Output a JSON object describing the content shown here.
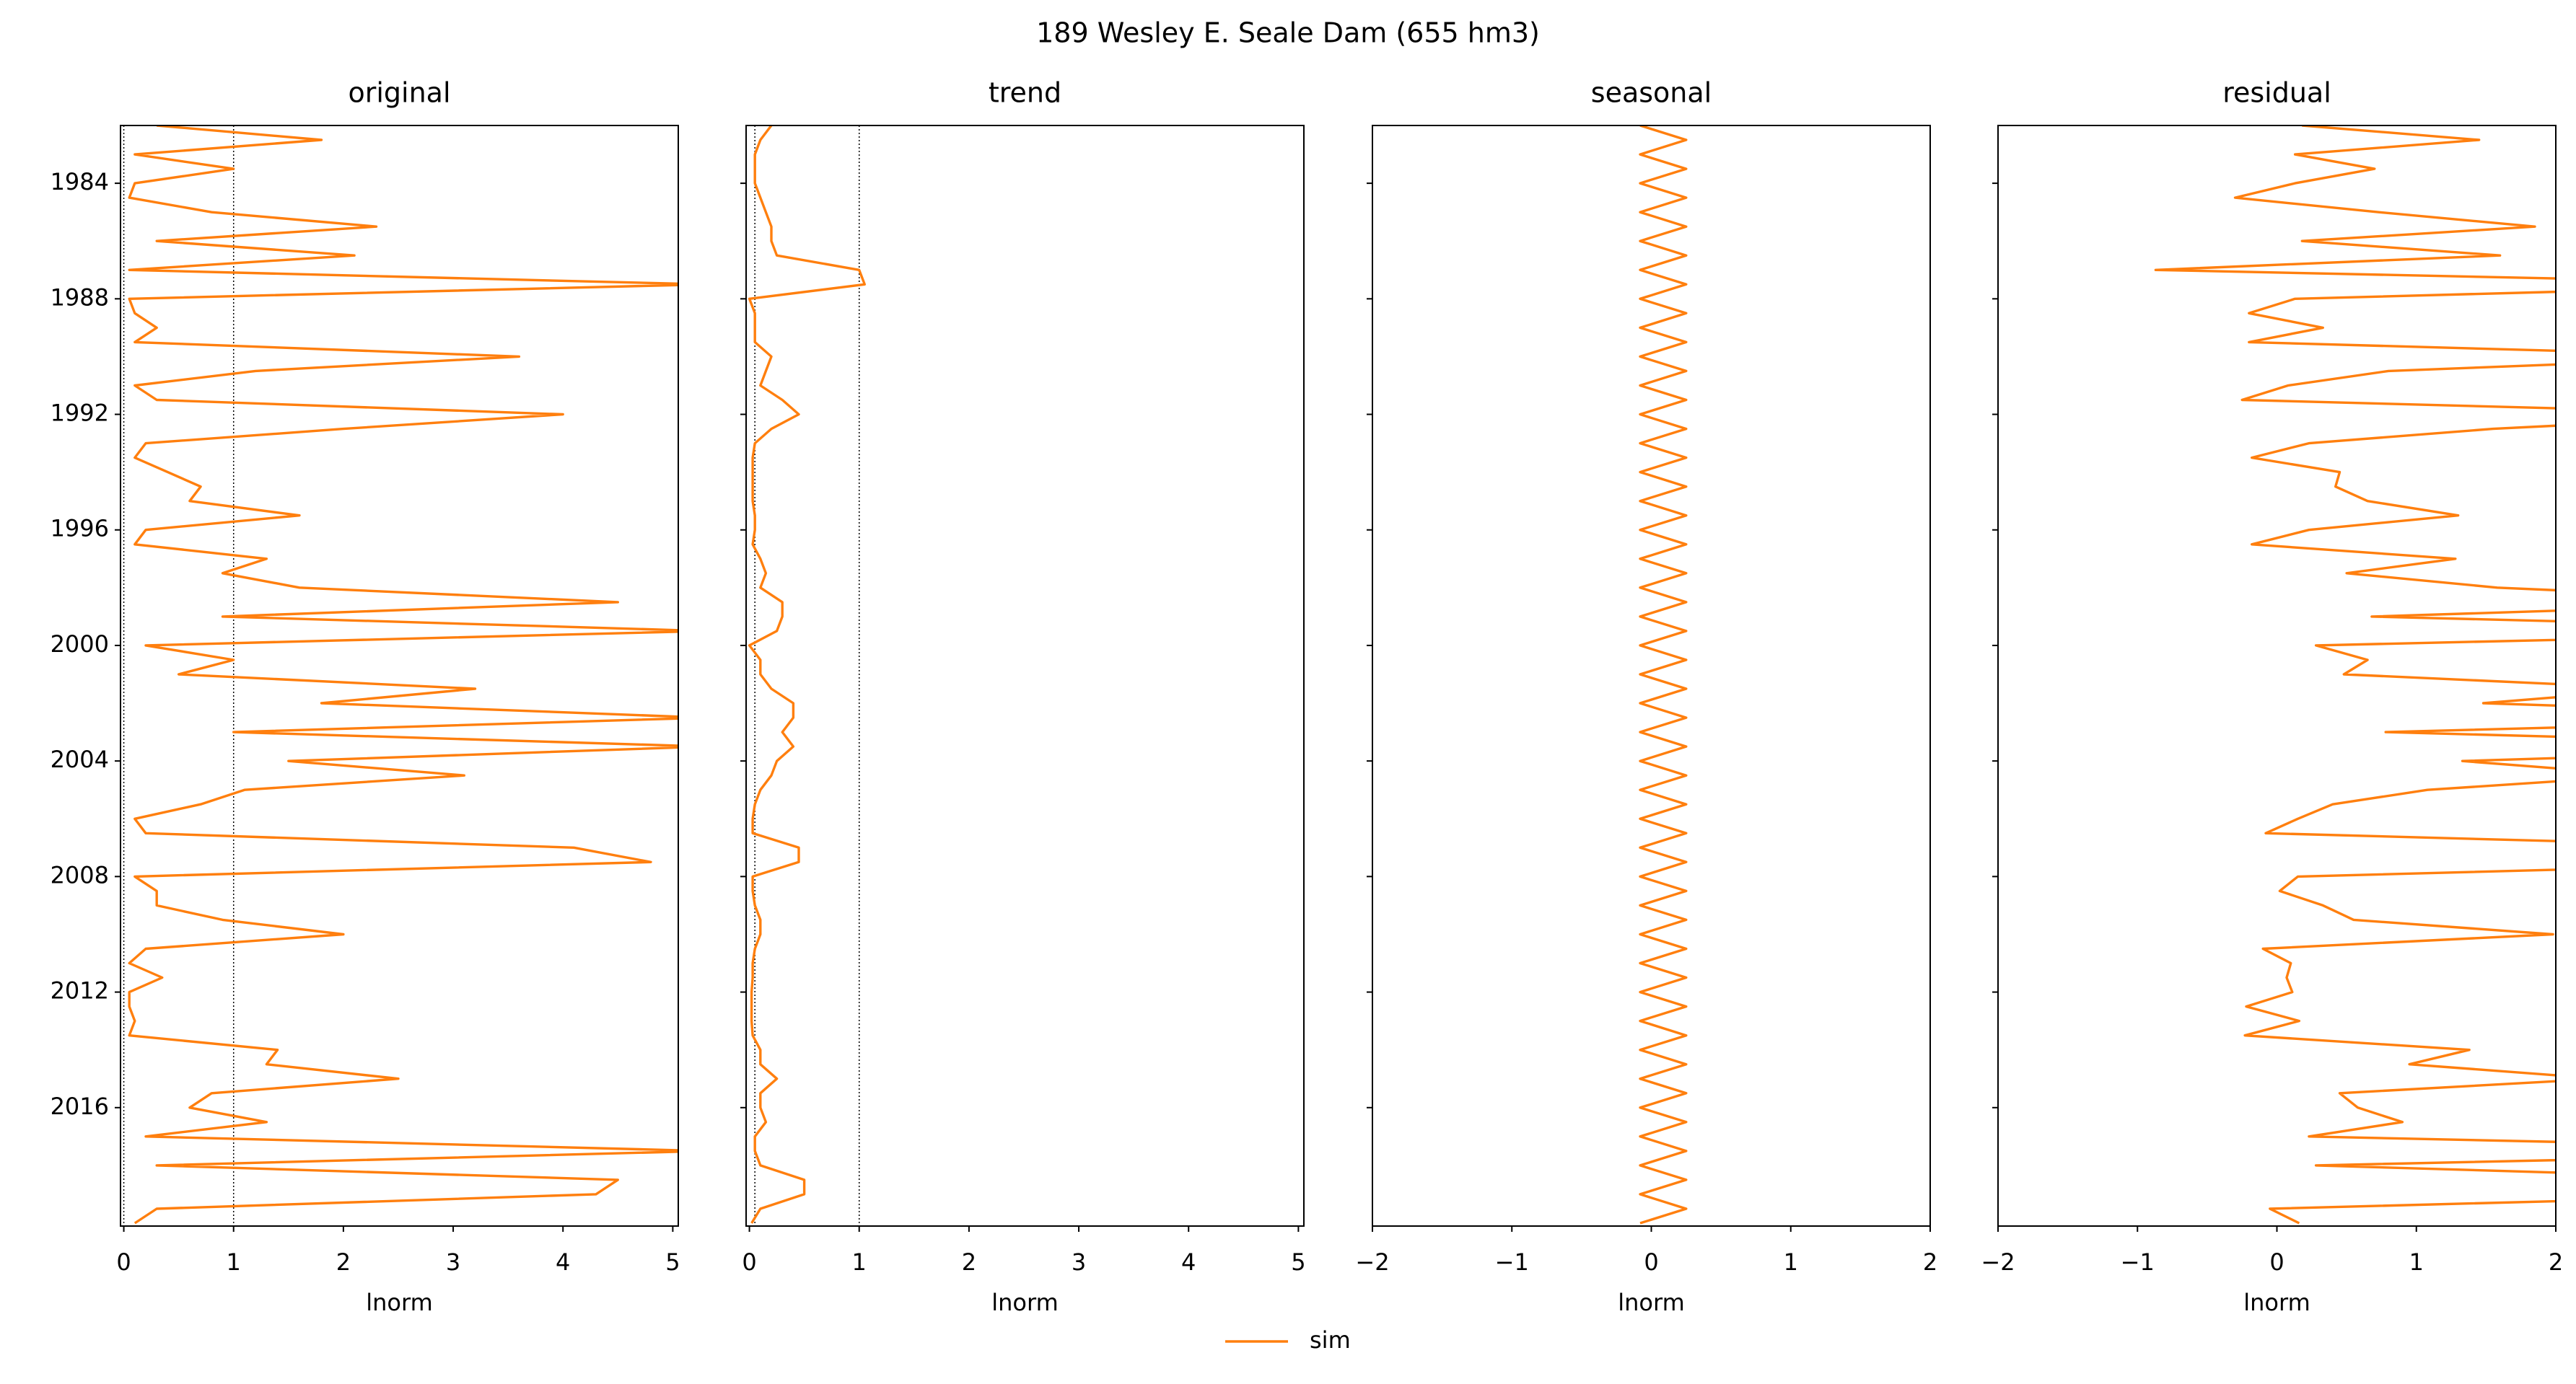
{
  "title": "189  Wesley E. Seale Dam (655 hm3)",
  "chart_data": [
    {
      "type": "line",
      "title": "original",
      "xlabel": "lnorm",
      "orientation": "horizontal",
      "time_axis_inverted": true,
      "show_xtick_labels": true,
      "xlim": [
        1982,
        2020.1
      ],
      "xticks": [
        1984,
        1988,
        1992,
        1996,
        2000,
        2004,
        2008,
        2012,
        2016
      ],
      "ylim": [
        -0.03,
        5.05
      ],
      "yticks": [
        0,
        1,
        2,
        3,
        4,
        5
      ],
      "vlines": [
        0,
        1
      ],
      "x": [
        1982.0,
        1982.5,
        1983.0,
        1983.5,
        1984.0,
        1984.5,
        1985.0,
        1985.5,
        1986.0,
        1986.5,
        1987.0,
        1987.5,
        1988.0,
        1988.5,
        1989.0,
        1989.5,
        1990.0,
        1990.5,
        1991.0,
        1991.5,
        1992.0,
        1992.5,
        1993.0,
        1993.5,
        1994.0,
        1994.5,
        1995.0,
        1995.5,
        1996.0,
        1996.5,
        1997.0,
        1997.5,
        1998.0,
        1998.5,
        1999.0,
        1999.5,
        2000.0,
        2000.5,
        2001.0,
        2001.5,
        2002.0,
        2002.5,
        2003.0,
        2003.5,
        2004.0,
        2004.5,
        2005.0,
        2005.5,
        2006.0,
        2006.5,
        2007.0,
        2007.5,
        2008.0,
        2008.5,
        2009.0,
        2009.5,
        2010.0,
        2010.5,
        2011.0,
        2011.5,
        2012.0,
        2012.5,
        2013.0,
        2013.5,
        2014.0,
        2014.5,
        2015.0,
        2015.5,
        2016.0,
        2016.5,
        2017.0,
        2017.5,
        2018.0,
        2018.5,
        2019.0,
        2019.5,
        2020.0
      ],
      "series": [
        {
          "name": "sim",
          "color": "#ff7f0e",
          "values": [
            0.3,
            1.8,
            0.1,
            1.0,
            0.1,
            0.05,
            0.8,
            2.3,
            0.3,
            2.1,
            0.05,
            5.3,
            0.05,
            0.1,
            0.3,
            0.1,
            3.6,
            1.2,
            0.1,
            0.3,
            4.0,
            2.0,
            0.2,
            0.1,
            0.4,
            0.7,
            0.6,
            1.6,
            0.2,
            0.1,
            1.3,
            0.9,
            1.6,
            4.5,
            0.9,
            5.3,
            0.2,
            1.0,
            0.5,
            3.2,
            1.8,
            5.3,
            1.0,
            5.3,
            1.5,
            3.1,
            1.1,
            0.7,
            0.1,
            0.2,
            4.1,
            4.8,
            0.1,
            0.3,
            0.3,
            0.9,
            2.0,
            0.2,
            0.05,
            0.35,
            0.05,
            0.05,
            0.1,
            0.05,
            1.4,
            1.3,
            2.5,
            0.8,
            0.6,
            1.3,
            0.2,
            5.3,
            0.3,
            4.5,
            4.3,
            0.3,
            0.1
          ]
        }
      ]
    },
    {
      "type": "line",
      "title": "trend",
      "xlabel": "lnorm",
      "orientation": "horizontal",
      "time_axis_inverted": true,
      "show_xtick_labels": false,
      "xlim": [
        1982,
        2020.1
      ],
      "xticks": [
        1984,
        1988,
        1992,
        1996,
        2000,
        2004,
        2008,
        2012,
        2016
      ],
      "ylim": [
        -0.03,
        5.05
      ],
      "yticks": [
        0,
        1,
        2,
        3,
        4,
        5
      ],
      "vlines": [
        0.05,
        1
      ],
      "x": [
        1982.0,
        1982.5,
        1983.0,
        1983.5,
        1984.0,
        1984.5,
        1985.0,
        1985.5,
        1986.0,
        1986.5,
        1987.0,
        1987.5,
        1988.0,
        1988.5,
        1989.0,
        1989.5,
        1990.0,
        1990.5,
        1991.0,
        1991.5,
        1992.0,
        1992.5,
        1993.0,
        1993.5,
        1994.0,
        1994.5,
        1995.0,
        1995.5,
        1996.0,
        1996.5,
        1997.0,
        1997.5,
        1998.0,
        1998.5,
        1999.0,
        1999.5,
        2000.0,
        2000.5,
        2001.0,
        2001.5,
        2002.0,
        2002.5,
        2003.0,
        2003.5,
        2004.0,
        2004.5,
        2005.0,
        2005.5,
        2006.0,
        2006.5,
        2007.0,
        2007.5,
        2008.0,
        2008.5,
        2009.0,
        2009.5,
        2010.0,
        2010.5,
        2011.0,
        2011.5,
        2012.0,
        2012.5,
        2013.0,
        2013.5,
        2014.0,
        2014.5,
        2015.0,
        2015.5,
        2016.0,
        2016.5,
        2017.0,
        2017.5,
        2018.0,
        2018.5,
        2019.0,
        2019.5,
        2020.0
      ],
      "series": [
        {
          "name": "sim",
          "color": "#ff7f0e",
          "values": [
            0.2,
            0.1,
            0.05,
            0.05,
            0.05,
            0.1,
            0.15,
            0.2,
            0.2,
            0.25,
            1.0,
            1.05,
            0.0,
            0.05,
            0.05,
            0.05,
            0.2,
            0.15,
            0.1,
            0.3,
            0.45,
            0.2,
            0.05,
            0.03,
            0.03,
            0.03,
            0.03,
            0.05,
            0.05,
            0.03,
            0.1,
            0.15,
            0.1,
            0.3,
            0.3,
            0.25,
            0.0,
            0.1,
            0.1,
            0.2,
            0.4,
            0.4,
            0.3,
            0.4,
            0.25,
            0.2,
            0.1,
            0.05,
            0.03,
            0.03,
            0.45,
            0.45,
            0.03,
            0.03,
            0.05,
            0.1,
            0.1,
            0.05,
            0.03,
            0.03,
            0.02,
            0.02,
            0.02,
            0.03,
            0.1,
            0.1,
            0.25,
            0.1,
            0.1,
            0.15,
            0.05,
            0.05,
            0.1,
            0.5,
            0.5,
            0.1,
            0.02
          ]
        }
      ]
    },
    {
      "type": "line",
      "title": "seasonal",
      "xlabel": "lnorm",
      "orientation": "horizontal",
      "time_axis_inverted": true,
      "show_xtick_labels": false,
      "xlim": [
        1982,
        2020.1
      ],
      "xticks": [
        1984,
        1988,
        1992,
        1996,
        2000,
        2004,
        2008,
        2012,
        2016
      ],
      "ylim": [
        -2,
        2
      ],
      "yticks": [
        {
          "value": -2,
          "label": "−2"
        },
        {
          "value": -1,
          "label": "−1"
        },
        0,
        1,
        2
      ],
      "x": [
        1982.0,
        1982.5,
        1983.0,
        1983.5,
        1984.0,
        1984.5,
        1985.0,
        1985.5,
        1986.0,
        1986.5,
        1987.0,
        1987.5,
        1988.0,
        1988.5,
        1989.0,
        1989.5,
        1990.0,
        1990.5,
        1991.0,
        1991.5,
        1992.0,
        1992.5,
        1993.0,
        1993.5,
        1994.0,
        1994.5,
        1995.0,
        1995.5,
        1996.0,
        1996.5,
        1997.0,
        1997.5,
        1998.0,
        1998.5,
        1999.0,
        1999.5,
        2000.0,
        2000.5,
        2001.0,
        2001.5,
        2002.0,
        2002.5,
        2003.0,
        2003.5,
        2004.0,
        2004.5,
        2005.0,
        2005.5,
        2006.0,
        2006.5,
        2007.0,
        2007.5,
        2008.0,
        2008.5,
        2009.0,
        2009.5,
        2010.0,
        2010.5,
        2011.0,
        2011.5,
        2012.0,
        2012.5,
        2013.0,
        2013.5,
        2014.0,
        2014.5,
        2015.0,
        2015.5,
        2016.0,
        2016.5,
        2017.0,
        2017.5,
        2018.0,
        2018.5,
        2019.0,
        2019.5,
        2020.0
      ],
      "series": [
        {
          "name": "sim",
          "color": "#ff7f0e",
          "values": [
            -0.08,
            0.25,
            -0.08,
            0.25,
            -0.08,
            0.25,
            -0.08,
            0.25,
            -0.08,
            0.25,
            -0.08,
            0.25,
            -0.08,
            0.25,
            -0.08,
            0.25,
            -0.08,
            0.25,
            -0.08,
            0.25,
            -0.08,
            0.25,
            -0.08,
            0.25,
            -0.08,
            0.25,
            -0.08,
            0.25,
            -0.08,
            0.25,
            -0.08,
            0.25,
            -0.08,
            0.25,
            -0.08,
            0.25,
            -0.08,
            0.25,
            -0.08,
            0.25,
            -0.08,
            0.25,
            -0.08,
            0.25,
            -0.08,
            0.25,
            -0.08,
            0.25,
            -0.08,
            0.25,
            -0.08,
            0.25,
            -0.08,
            0.25,
            -0.08,
            0.25,
            -0.08,
            0.25,
            -0.08,
            0.25,
            -0.08,
            0.25,
            -0.08,
            0.25,
            -0.08,
            0.25,
            -0.08,
            0.25,
            -0.08,
            0.25,
            -0.08,
            0.25,
            -0.08,
            0.25,
            -0.08,
            0.25,
            -0.08
          ]
        }
      ]
    },
    {
      "type": "line",
      "title": "residual",
      "xlabel": "lnorm",
      "orientation": "horizontal",
      "time_axis_inverted": true,
      "show_xtick_labels": false,
      "xlim": [
        1982,
        2020.1
      ],
      "xticks": [
        1984,
        1988,
        1992,
        1996,
        2000,
        2004,
        2008,
        2012,
        2016
      ],
      "ylim": [
        -2,
        2
      ],
      "yticks": [
        {
          "value": -2,
          "label": "−2"
        },
        {
          "value": -1,
          "label": "−1"
        },
        0,
        1,
        2
      ],
      "x": [
        1982.0,
        1982.5,
        1983.0,
        1983.5,
        1984.0,
        1984.5,
        1985.0,
        1985.5,
        1986.0,
        1986.5,
        1987.0,
        1987.5,
        1988.0,
        1988.5,
        1989.0,
        1989.5,
        1990.0,
        1990.5,
        1991.0,
        1991.5,
        1992.0,
        1992.5,
        1993.0,
        1993.5,
        1994.0,
        1994.5,
        1995.0,
        1995.5,
        1996.0,
        1996.5,
        1997.0,
        1997.5,
        1998.0,
        1998.5,
        1999.0,
        1999.5,
        2000.0,
        2000.5,
        2001.0,
        2001.5,
        2002.0,
        2002.5,
        2003.0,
        2003.5,
        2004.0,
        2004.5,
        2005.0,
        2005.5,
        2006.0,
        2006.5,
        2007.0,
        2007.5,
        2008.0,
        2008.5,
        2009.0,
        2009.5,
        2010.0,
        2010.5,
        2011.0,
        2011.5,
        2012.0,
        2012.5,
        2013.0,
        2013.5,
        2014.0,
        2014.5,
        2015.0,
        2015.5,
        2016.0,
        2016.5,
        2017.0,
        2017.5,
        2018.0,
        2018.5,
        2019.0,
        2019.5,
        2020.0
      ],
      "series": [
        {
          "name": "sim",
          "color": "#ff7f0e",
          "values": [
            0.18,
            1.45,
            0.13,
            0.7,
            0.13,
            -0.3,
            0.73,
            1.85,
            0.18,
            1.6,
            -0.87,
            4.0,
            0.13,
            -0.2,
            0.33,
            -0.2,
            3.48,
            0.8,
            0.08,
            -0.25,
            3.63,
            1.55,
            0.23,
            -0.18,
            0.45,
            0.42,
            0.65,
            1.3,
            0.23,
            -0.18,
            1.28,
            0.5,
            1.58,
            3.95,
            0.68,
            4.8,
            0.28,
            0.65,
            0.48,
            2.75,
            1.48,
            4.65,
            0.78,
            4.65,
            1.33,
            2.65,
            1.08,
            0.4,
            0.15,
            -0.08,
            3.73,
            4.1,
            0.15,
            0.02,
            0.33,
            0.55,
            1.98,
            -0.1,
            0.1,
            0.07,
            0.11,
            -0.22,
            0.16,
            -0.23,
            1.38,
            0.95,
            2.33,
            0.45,
            0.58,
            0.9,
            0.23,
            5.0,
            0.28,
            3.75,
            3.88,
            -0.05,
            0.16
          ]
        }
      ]
    }
  ]
}
